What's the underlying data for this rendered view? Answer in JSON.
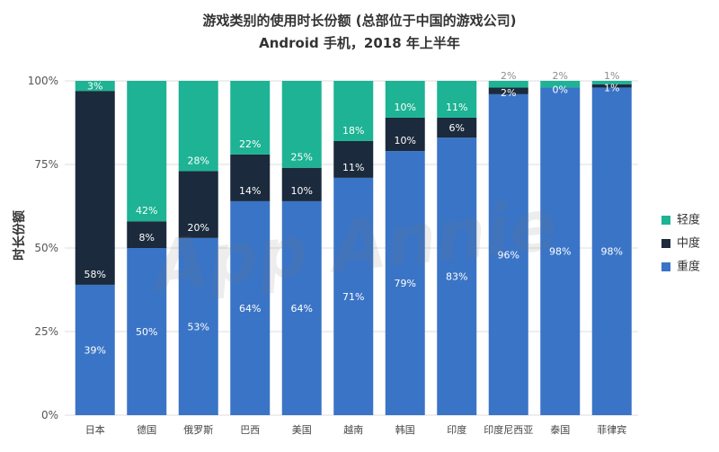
{
  "chart_data": {
    "type": "bar",
    "stacked": true,
    "title": "游戏类别的使用时长份额 (总部位于中国的游戏公司)",
    "subtitle": "Android 手机，2018 年上半年",
    "xlabel": "",
    "ylabel": "时长份额",
    "ylim": [
      0,
      100
    ],
    "yticks": [
      0,
      25,
      50,
      75,
      100
    ],
    "ytick_labels": [
      "0%",
      "25%",
      "50%",
      "75%",
      "100%"
    ],
    "value_suffix": "%",
    "grid": true,
    "legend_position": "right",
    "categories": [
      "日本",
      "德国",
      "俄罗斯",
      "巴西",
      "美国",
      "越南",
      "韩国",
      "印度",
      "印度尼西亚",
      "泰国",
      "菲律宾"
    ],
    "series": [
      {
        "name": "重度",
        "color": "#3a74c6",
        "values": [
          39,
          50,
          53,
          64,
          64,
          71,
          79,
          83,
          96,
          98,
          98
        ]
      },
      {
        "name": "中度",
        "color": "#1b2a3c",
        "values": [
          58,
          8,
          20,
          14,
          10,
          11,
          10,
          6,
          2,
          0,
          1
        ]
      },
      {
        "name": "轻度",
        "color": "#1db394",
        "values": [
          3,
          42,
          28,
          22,
          25,
          18,
          10,
          11,
          2,
          2,
          1
        ]
      }
    ]
  },
  "watermark": "App Annie"
}
